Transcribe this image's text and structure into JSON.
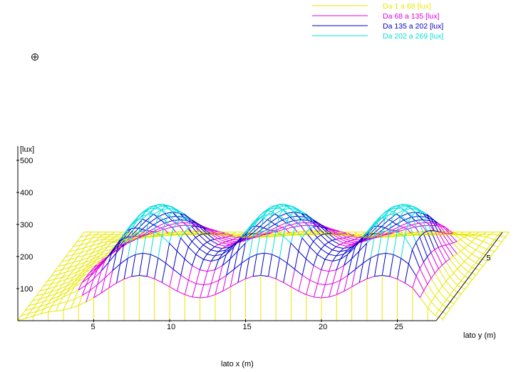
{
  "chart_data": {
    "type": "surface-3d-wireframe",
    "title": "",
    "xlabel": "lato x (m)",
    "ylabel": "lato y (m)",
    "zlabel": "[lux]",
    "x_ticks": [
      "5",
      "10",
      "15",
      "20",
      "25"
    ],
    "y_ticks": [
      "5"
    ],
    "z_ticks": [
      "100",
      "200",
      "300",
      "400",
      "500"
    ],
    "x_range": [
      0,
      28
    ],
    "y_range": [
      0,
      7
    ],
    "z_range": [
      0,
      500
    ],
    "legend_position": "top-right",
    "bands": [
      {
        "label": "Da    1 a   68 [lux]",
        "color": "#e8e800",
        "min": 1,
        "max": 68
      },
      {
        "label": "Da  68 a  135 [lux]",
        "color": "#e000e0",
        "min": 68,
        "max": 135
      },
      {
        "label": "Da  135 a  202 [lux]",
        "color": "#0000c8",
        "min": 135,
        "max": 202
      },
      {
        "label": "Da  202 a  269 [lux]",
        "color": "#00dede",
        "min": 202,
        "max": 269
      }
    ],
    "peaks": [
      {
        "x": 8,
        "y": 1.5,
        "value": 269
      },
      {
        "x": 16,
        "y": 1.5,
        "value": 269
      },
      {
        "x": 24,
        "y": 1.5,
        "value": 269
      }
    ]
  }
}
